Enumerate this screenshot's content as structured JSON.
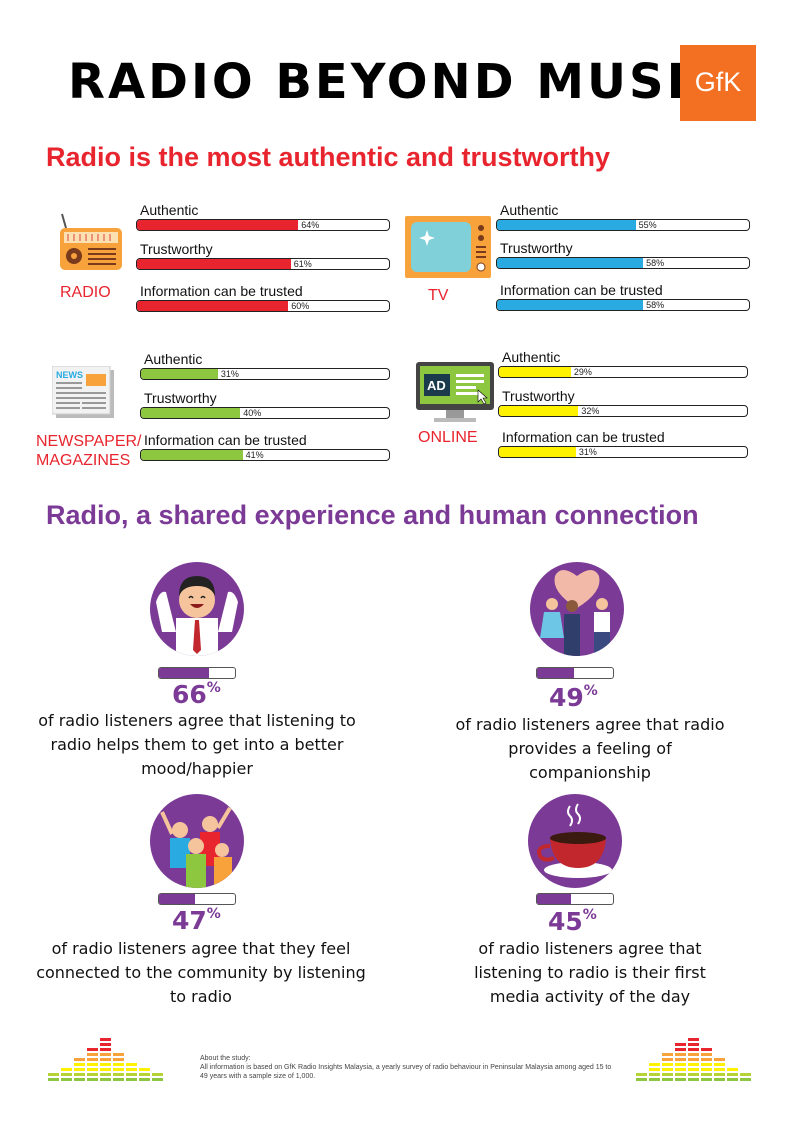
{
  "title": "RADIO BEYOND MUSIC",
  "logo_text": "GfK",
  "section1_heading": "Radio is the most authentic and trustworthy",
  "section2_heading": "Radio, a shared experience and human connection",
  "colors": {
    "radio": "#e8252e",
    "tv": "#29abe2",
    "newspaper": "#8dc63f",
    "online": "#fff200",
    "purple": "#7b3a96",
    "orange": "#f36f21"
  },
  "chart_data": [
    {
      "type": "bar",
      "media": "RADIO",
      "categories": [
        "Authentic",
        "Trustworthy",
        "Information can be trusted"
      ],
      "values": [
        64,
        61,
        60
      ],
      "labels": [
        "64%",
        "61%",
        "60%"
      ],
      "ylim": [
        0,
        100
      ]
    },
    {
      "type": "bar",
      "media": "TV",
      "categories": [
        "Authentic",
        "Trustworthy",
        "Information can be trusted"
      ],
      "values": [
        55,
        58,
        58
      ],
      "labels": [
        "55%",
        "58%",
        "58%"
      ],
      "ylim": [
        0,
        100
      ]
    },
    {
      "type": "bar",
      "media": "NEWSPAPER/ MAGAZINES",
      "categories": [
        "Authentic",
        "Trustworthy",
        "Information can be trusted"
      ],
      "values": [
        31,
        40,
        41
      ],
      "labels": [
        "31%",
        "40%",
        "41%"
      ],
      "ylim": [
        0,
        100
      ]
    },
    {
      "type": "bar",
      "media": "ONLINE",
      "categories": [
        "Authentic",
        "Trustworthy",
        "Information can be trusted"
      ],
      "values": [
        29,
        32,
        31
      ],
      "labels": [
        "29%",
        "32%",
        "31%"
      ],
      "ylim": [
        0,
        100
      ]
    }
  ],
  "icons": {
    "radio": "radio-icon",
    "tv": "tv-icon",
    "newspaper": "newspaper-icon",
    "online": "online-ad-icon"
  },
  "ad_label": "AD",
  "news_label": "NEWS",
  "stats": [
    {
      "value": 66,
      "pct": "66",
      "sign": "%",
      "text": "of radio listeners agree that listening to radio helps them to get into a better mood/happier",
      "icon": "happy-man-icon"
    },
    {
      "value": 49,
      "pct": "49",
      "sign": "%",
      "text": "of radio listeners agree that radio provides a feeling of companionship",
      "icon": "heart-people-icon"
    },
    {
      "value": 47,
      "pct": "47",
      "sign": "%",
      "text": "of radio listeners agree that they feel connected to the community by listening to radio",
      "icon": "crowd-icon"
    },
    {
      "value": 45,
      "pct": "45",
      "sign": "%",
      "text": "of radio listeners agree that listening to radio is their first media activity of the day",
      "icon": "coffee-cup-icon"
    }
  ],
  "about": {
    "heading": "About the study:",
    "body": "All information is based on GfK Radio Insights Malaysia, a yearly survey of radio behaviour in Peninsular Malaysia among aged 15 to 49 years with a sample size of 1,000."
  }
}
